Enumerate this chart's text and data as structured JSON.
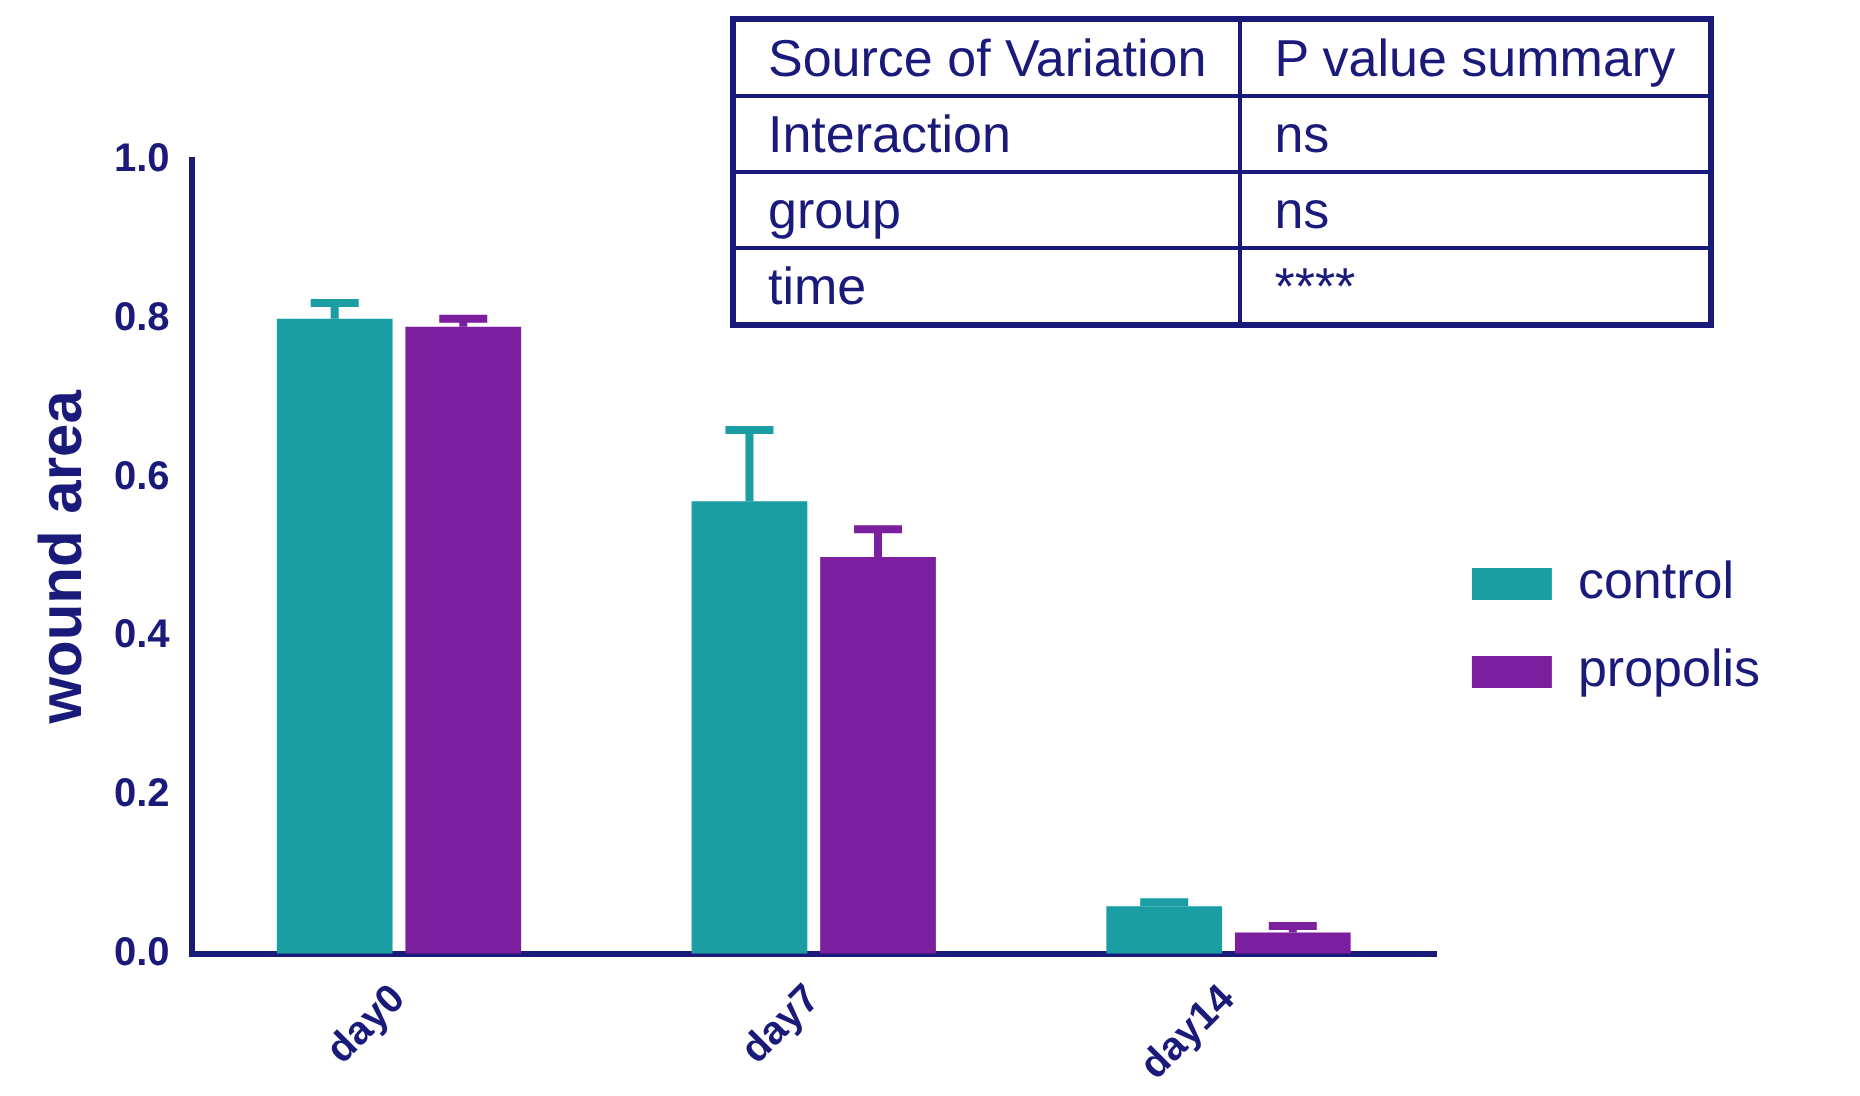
{
  "chart_data": {
    "type": "bar",
    "ylabel": "wound area",
    "categories": [
      "day0",
      "day7",
      "day14"
    ],
    "series": [
      {
        "name": "control",
        "color": "#1a9ea3",
        "values": [
          0.8,
          0.57,
          0.06
        ],
        "errors": [
          0.02,
          0.09,
          0.005
        ]
      },
      {
        "name": "propolis",
        "color": "#7b1f9e",
        "values": [
          0.79,
          0.5,
          0.027
        ],
        "errors": [
          0.01,
          0.035,
          0.008
        ]
      }
    ],
    "ylim": [
      0,
      1
    ],
    "yticks": [
      {
        "value": 0,
        "label": "0.0"
      },
      {
        "value": 0.2,
        "label": "0.2"
      },
      {
        "value": 0.4,
        "label": "0.4"
      },
      {
        "value": 0.6,
        "label": "0.6"
      },
      {
        "value": 0.8,
        "label": "0.8"
      },
      {
        "value": 1,
        "label": "1.0"
      }
    ],
    "grid": false,
    "legend": "right",
    "annotations": [
      "Source of Variation",
      "P value summary",
      "Interaction",
      "ns",
      "group",
      "ns",
      "time",
      "****"
    ]
  }
}
